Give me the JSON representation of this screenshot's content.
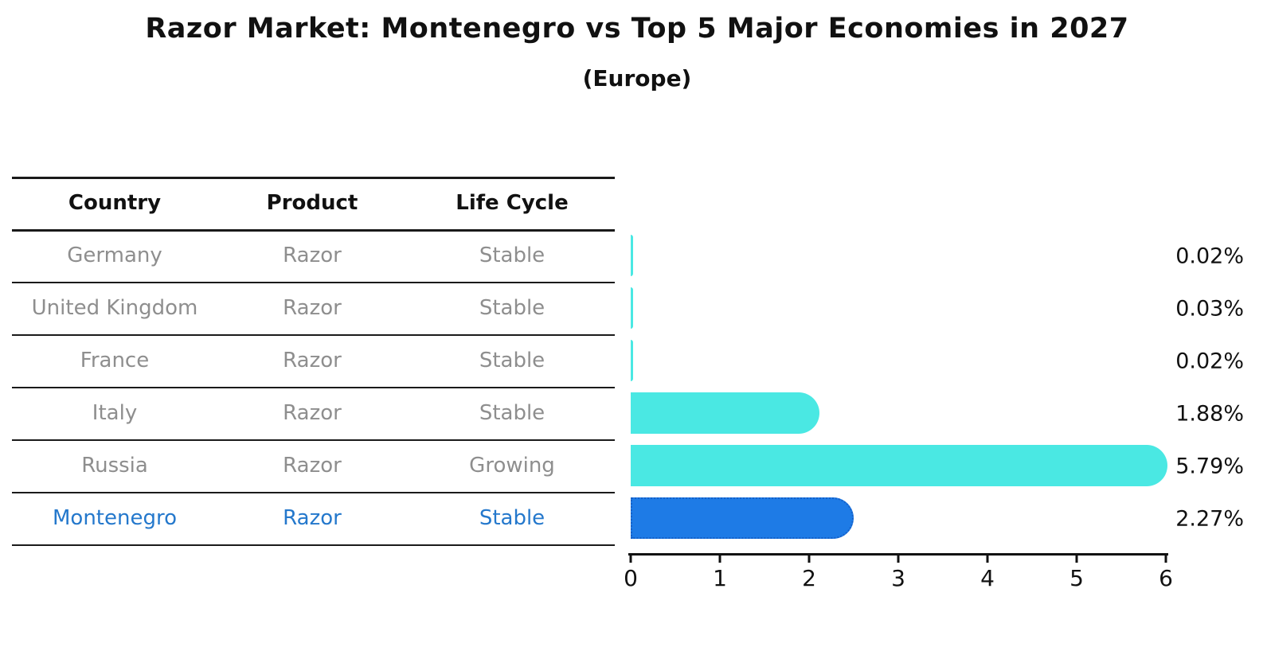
{
  "title": "Razor Market: Montenegro vs Top 5 Major Economies in 2027",
  "subtitle": "(Europe)",
  "table": {
    "headers": [
      "Country",
      "Product",
      "Life Cycle"
    ],
    "rows": [
      {
        "country": "Germany",
        "product": "Razor",
        "life_cycle": "Stable",
        "highlight": false
      },
      {
        "country": "United Kingdom",
        "product": "Razor",
        "life_cycle": "Stable",
        "highlight": false
      },
      {
        "country": "France",
        "product": "Razor",
        "life_cycle": "Stable",
        "highlight": false
      },
      {
        "country": "Italy",
        "product": "Razor",
        "life_cycle": "Stable",
        "highlight": false
      },
      {
        "country": "Russia",
        "product": "Razor",
        "life_cycle": "Growing",
        "highlight": false
      },
      {
        "country": "Montenegro",
        "product": "Razor",
        "life_cycle": "Stable",
        "highlight": true
      }
    ],
    "row_text_color": "#8e8e8e",
    "highlight_text_color": "#2478cc"
  },
  "chart_data": {
    "type": "bar",
    "orientation": "horizontal",
    "title": "Razor Market: Montenegro vs Top 5 Major Economies in 2027",
    "subtitle": "(Europe)",
    "categories": [
      "Germany",
      "United Kingdom",
      "France",
      "Italy",
      "Russia",
      "Montenegro"
    ],
    "values": [
      0.02,
      0.03,
      0.02,
      1.88,
      5.79,
      2.27
    ],
    "value_labels": [
      "0.02%",
      "0.03%",
      "0.02%",
      "1.88%",
      "5.79%",
      "2.27%"
    ],
    "xlabel": "",
    "ylabel": "",
    "xlim": [
      0,
      6
    ],
    "x_ticks": [
      "0",
      "1",
      "2",
      "3",
      "4",
      "5",
      "6"
    ],
    "grid": false,
    "legend": false,
    "highlight_index": 5,
    "bar_color": "#4ae8e3",
    "highlight_bar_color": "#1e7be6",
    "highlight_border_color": "#1560c8",
    "axis_color": "#111111",
    "label_color": "#111111"
  }
}
